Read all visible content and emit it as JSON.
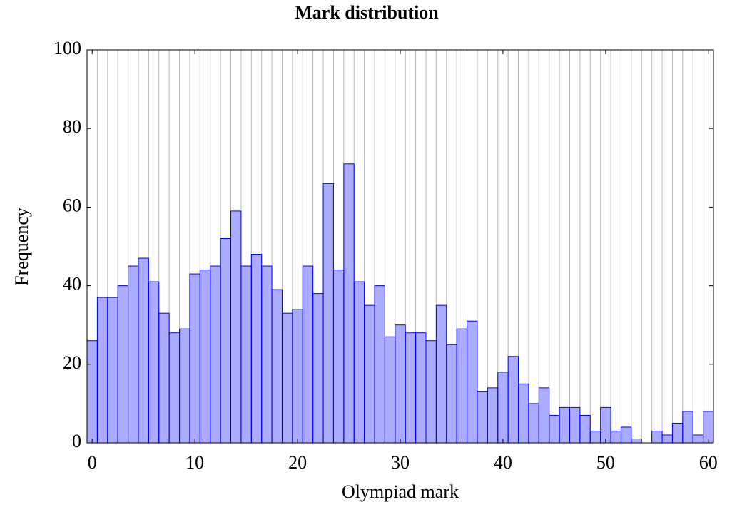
{
  "chart_data": {
    "type": "histogram",
    "title": "Mark distribution",
    "x_label": "Olympiad mark",
    "y_label": "Frequency",
    "bins": [
      -0.5,
      0.5,
      1.5,
      2.5,
      3.5,
      4.5,
      5.5,
      6.5,
      7.5,
      8.5,
      9.5,
      10.5,
      11.5,
      12.5,
      13.5,
      14.5,
      15.5,
      16.5,
      17.5,
      18.5,
      19.5,
      20.5,
      21.5,
      22.5,
      23.5,
      24.5,
      25.5,
      26.5,
      27.5,
      28.5,
      29.5,
      30.5,
      31.5,
      32.5,
      33.5,
      34.5,
      35.5,
      36.5,
      37.5,
      38.5,
      39.5,
      40.5,
      41.5,
      42.5,
      43.5,
      44.5,
      45.5,
      46.5,
      47.5,
      48.5,
      49.5,
      50.5,
      51.5,
      52.5,
      53.5,
      54.5,
      55.5,
      56.5,
      57.5,
      58.5,
      59.5,
      60.5
    ],
    "values": [
      26,
      37,
      37,
      40,
      45,
      47,
      41,
      33,
      28,
      29,
      43,
      44,
      45,
      52,
      59,
      45,
      48,
      45,
      39,
      33,
      34,
      45,
      38,
      66,
      44,
      71,
      41,
      35,
      40,
      27,
      30,
      28,
      28,
      26,
      35,
      25,
      29,
      31,
      13,
      14,
      18,
      22,
      15,
      10,
      14,
      7,
      9,
      9,
      7,
      3,
      9,
      3,
      4,
      1,
      0,
      3,
      2,
      5,
      8,
      2,
      8
    ],
    "color": "#0000ff",
    "xlim": [
      -0.5,
      60.5
    ],
    "ylim": [
      0,
      100
    ],
    "xticks": [
      0,
      10,
      20,
      30,
      40,
      50,
      60
    ],
    "yticks": [
      0,
      20,
      40,
      60,
      80,
      100
    ],
    "grid": true
  }
}
